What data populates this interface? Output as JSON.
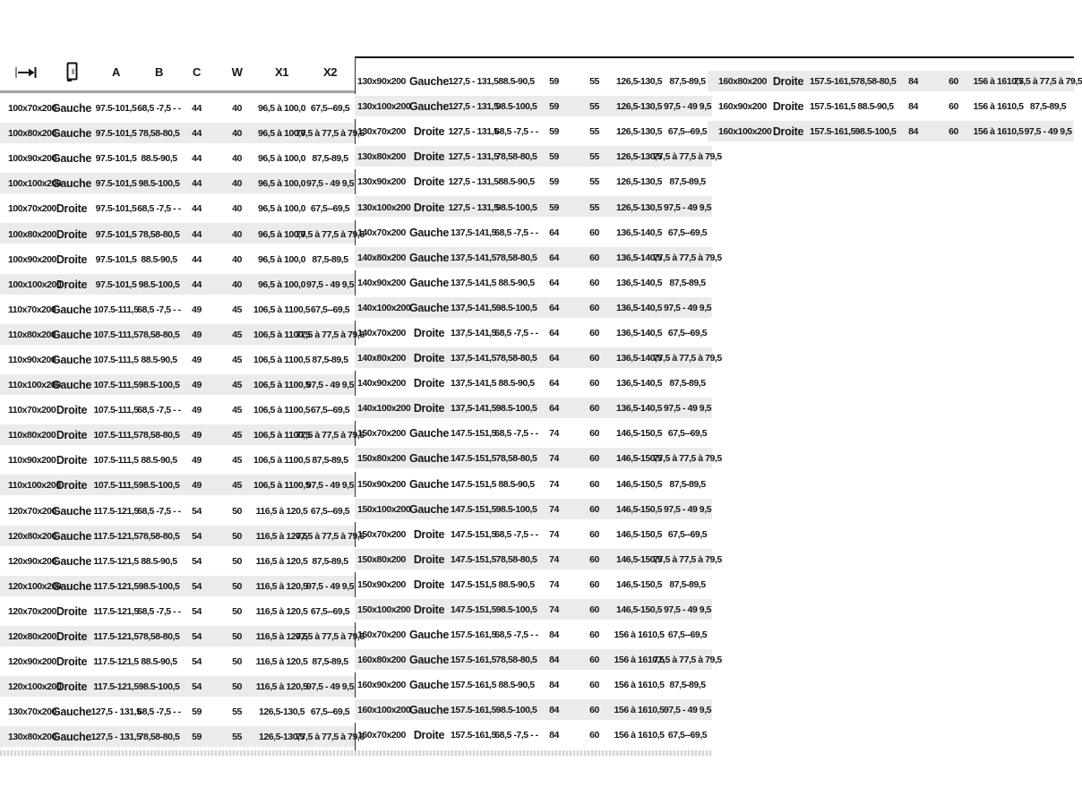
{
  "header": {
    "icons": [
      "width-dimension-icon",
      "door-icon"
    ],
    "labels": [
      "A",
      "B",
      "C",
      "W",
      "X1",
      "X2"
    ]
  },
  "columns": [
    "size",
    "side",
    "A",
    "B",
    "C",
    "W",
    "X1",
    "X2"
  ],
  "colors": {
    "row_shade": "#ebebeb",
    "header_rule": "#a3a3a3",
    "top_rule": "#101010",
    "text": "#161616"
  },
  "tables": [
    {
      "id": "left",
      "shade_parity": 1,
      "rows": [
        [
          "100x70x200",
          "Gauche",
          "97.5-101,5",
          "68,5 -7,5 - -",
          "44",
          "40",
          "96,5 à 100,0",
          "67,5--69,5"
        ],
        [
          "100x80x200",
          "Gauche",
          "97.5-101,5",
          "78,58-80,5",
          "44",
          "40",
          "96,5 à 100,0",
          "77,5 à 77,5 à 79,5"
        ],
        [
          "100x90x200",
          "Gauche",
          "97.5-101,5",
          "88.5-90,5",
          "44",
          "40",
          "96,5 à 100,0",
          "87,5-89,5"
        ],
        [
          "100x100x200",
          "Gauche",
          "97.5-101,5",
          "98.5-100,5",
          "44",
          "40",
          "96,5 à 100,0",
          "97,5 - 49 9,5"
        ],
        [
          "100x70x200",
          "Droite",
          "97.5-101,5",
          "68,5 -7,5 - -",
          "44",
          "40",
          "96,5 à 100,0",
          "67,5--69,5"
        ],
        [
          "100x80x200",
          "Droite",
          "97.5-101,5",
          "78,58-80,5",
          "44",
          "40",
          "96,5 à 100,0",
          "77,5 à 77,5 à 79,5"
        ],
        [
          "100x90x200",
          "Droite",
          "97.5-101,5",
          "88.5-90,5",
          "44",
          "40",
          "96,5 à 100,0",
          "87,5-89,5"
        ],
        [
          "100x100x200",
          "Droite",
          "97.5-101,5",
          "98.5-100,5",
          "44",
          "40",
          "96,5 à 100,0",
          "97,5 - 49 9,5"
        ],
        [
          "110x70x200",
          "Gauche",
          "107.5-111,5",
          "68,5 -7,5 - -",
          "49",
          "45",
          "106,5 à 1100,5",
          "67,5--69,5"
        ],
        [
          "110x80x200",
          "Gauche",
          "107.5-111,5",
          "78,58-80,5",
          "49",
          "45",
          "106,5 à 1100,5",
          "77,5 à 77,5 à 79,5"
        ],
        [
          "110x90x200",
          "Gauche",
          "107.5-111,5",
          "88.5-90,5",
          "49",
          "45",
          "106,5 à 1100,5",
          "87,5-89,5"
        ],
        [
          "110x100x200",
          "Gauche",
          "107.5-111,5",
          "98.5-100,5",
          "49",
          "45",
          "106,5 à 1100,5",
          "97,5 - 49 9,5"
        ],
        [
          "110x70x200",
          "Droite",
          "107.5-111,5",
          "68,5 -7,5 - -",
          "49",
          "45",
          "106,5 à 1100,5",
          "67,5--69,5"
        ],
        [
          "110x80x200",
          "Droite",
          "107.5-111,5",
          "78,58-80,5",
          "49",
          "45",
          "106,5 à 1100,5",
          "77,5 à 77,5 à 79,5"
        ],
        [
          "110x90x200",
          "Droite",
          "107.5-111,5",
          "88.5-90,5",
          "49",
          "45",
          "106,5 à 1100,5",
          "87,5-89,5"
        ],
        [
          "110x100x200",
          "Droite",
          "107.5-111,5",
          "98.5-100,5",
          "49",
          "45",
          "106,5 à 1100,5",
          "97,5 - 49 9,5"
        ],
        [
          "120x70x200",
          "Gauche",
          "117.5-121,5",
          "68,5 -7,5 - -",
          "54",
          "50",
          "116,5 à 120,5",
          "67,5--69,5"
        ],
        [
          "120x80x200",
          "Gauche",
          "117.5-121,5",
          "78,58-80,5",
          "54",
          "50",
          "116,5 à 120,5",
          "77,5 à 77,5 à 79,5"
        ],
        [
          "120x90x200",
          "Gauche",
          "117.5-121,5",
          "88.5-90,5",
          "54",
          "50",
          "116,5 à 120,5",
          "87,5-89,5"
        ],
        [
          "120x100x200",
          "Gauche",
          "117.5-121,5",
          "98.5-100,5",
          "54",
          "50",
          "116,5 à 120,5",
          "97,5 - 49 9,5"
        ],
        [
          "120x70x200",
          "Droite",
          "117.5-121,5",
          "68,5 -7,5 - -",
          "54",
          "50",
          "116,5 à 120,5",
          "67,5--69,5"
        ],
        [
          "120x80x200",
          "Droite",
          "117.5-121,5",
          "78,58-80,5",
          "54",
          "50",
          "116,5 à 120,5",
          "77,5 à 77,5 à 79,5"
        ],
        [
          "120x90x200",
          "Droite",
          "117.5-121,5",
          "88.5-90,5",
          "54",
          "50",
          "116,5 à 120,5",
          "87,5-89,5"
        ],
        [
          "120x100x200",
          "Droite",
          "117.5-121,5",
          "98.5-100,5",
          "54",
          "50",
          "116,5 à 120,5",
          "97,5 - 49 9,5"
        ],
        [
          "130x70x200",
          "Gauche",
          "127,5 - 131,5",
          "68,5 -7,5 - -",
          "59",
          "55",
          "126,5-130,5",
          "67,5--69,5"
        ],
        [
          "130x80x200",
          "Gauche",
          "127,5 - 131,5",
          "78,58-80,5",
          "59",
          "55",
          "126,5-130,5",
          "77,5 à 77,5 à 79,5"
        ]
      ]
    },
    {
      "id": "middle",
      "shade_parity": 1,
      "rows": [
        [
          "130x90x200",
          "Gauche",
          "127,5 - 131,5",
          "88.5-90,5",
          "59",
          "55",
          "126,5-130,5",
          "87,5-89,5"
        ],
        [
          "130x100x200",
          "Gauche",
          "127,5 - 131,5",
          "98.5-100,5",
          "59",
          "55",
          "126,5-130,5",
          "97,5 - 49 9,5"
        ],
        [
          "130x70x200",
          "Droite",
          "127,5 - 131,5",
          "68,5 -7,5 - -",
          "59",
          "55",
          "126,5-130,5",
          "67,5--69,5"
        ],
        [
          "130x80x200",
          "Droite",
          "127,5 - 131,5",
          "78,58-80,5",
          "59",
          "55",
          "126,5-130,5",
          "77,5 à 77,5 à 79,5"
        ],
        [
          "130x90x200",
          "Droite",
          "127,5 - 131,5",
          "88.5-90,5",
          "59",
          "55",
          "126,5-130,5",
          "87,5-89,5"
        ],
        [
          "130x100x200",
          "Droite",
          "127,5 - 131,5",
          "98.5-100,5",
          "59",
          "55",
          "126,5-130,5",
          "97,5 - 49 9,5"
        ],
        [
          "140x70x200",
          "Gauche",
          "137,5-141,5",
          "68,5 -7,5 - -",
          "64",
          "60",
          "136,5-140,5",
          "67,5--69,5"
        ],
        [
          "140x80x200",
          "Gauche",
          "137,5-141,5",
          "78,58-80,5",
          "64",
          "60",
          "136,5-140,5",
          "77,5 à 77,5 à 79,5"
        ],
        [
          "140x90x200",
          "Gauche",
          "137,5-141,5",
          "88.5-90,5",
          "64",
          "60",
          "136,5-140,5",
          "87,5-89,5"
        ],
        [
          "140x100x200",
          "Gauche",
          "137,5-141,5",
          "98.5-100,5",
          "64",
          "60",
          "136,5-140,5",
          "97,5 - 49 9,5"
        ],
        [
          "140x70x200",
          "Droite",
          "137,5-141,5",
          "68,5 -7,5 - -",
          "64",
          "60",
          "136,5-140,5",
          "67,5--69,5"
        ],
        [
          "140x80x200",
          "Droite",
          "137,5-141,5",
          "78,58-80,5",
          "64",
          "60",
          "136,5-140,5",
          "77,5 à 77,5 à 79,5"
        ],
        [
          "140x90x200",
          "Droite",
          "137,5-141,5",
          "88.5-90,5",
          "64",
          "60",
          "136,5-140,5",
          "87,5-89,5"
        ],
        [
          "140x100x200",
          "Droite",
          "137,5-141,5",
          "98.5-100,5",
          "64",
          "60",
          "136,5-140,5",
          "97,5 - 49 9,5"
        ],
        [
          "150x70x200",
          "Gauche",
          "147.5-151,5",
          "68,5 -7,5 - -",
          "74",
          "60",
          "146,5-150,5",
          "67,5--69,5"
        ],
        [
          "150x80x200",
          "Gauche",
          "147.5-151,5",
          "78,58-80,5",
          "74",
          "60",
          "146,5-150,5",
          "77,5 à 77,5 à 79,5"
        ],
        [
          "150x90x200",
          "Gauche",
          "147.5-151,5",
          "88.5-90,5",
          "74",
          "60",
          "146,5-150,5",
          "87,5-89,5"
        ],
        [
          "150x100x200",
          "Gauche",
          "147.5-151,5",
          "98.5-100,5",
          "74",
          "60",
          "146,5-150,5",
          "97,5 - 49 9,5"
        ],
        [
          "150x70x200",
          "Droite",
          "147.5-151,5",
          "68,5 -7,5 - -",
          "74",
          "60",
          "146,5-150,5",
          "67,5--69,5"
        ],
        [
          "150x80x200",
          "Droite",
          "147.5-151,5",
          "78,58-80,5",
          "74",
          "60",
          "146,5-150,5",
          "77,5 à 77,5 à 79,5"
        ],
        [
          "150x90x200",
          "Droite",
          "147.5-151,5",
          "88.5-90,5",
          "74",
          "60",
          "146,5-150,5",
          "87,5-89,5"
        ],
        [
          "150x100x200",
          "Droite",
          "147.5-151,5",
          "98.5-100,5",
          "74",
          "60",
          "146,5-150,5",
          "97,5 - 49 9,5"
        ],
        [
          "160x70x200",
          "Gauche",
          "157.5-161,5",
          "68,5 -7,5 - -",
          "84",
          "60",
          "156 à 1610,5",
          "67,5--69,5"
        ],
        [
          "160x80x200",
          "Gauche",
          "157.5-161,5",
          "78,58-80,5",
          "84",
          "60",
          "156 à 1610,5",
          "77,5 à 77,5 à 79,5"
        ],
        [
          "160x90x200",
          "Gauche",
          "157.5-161,5",
          "88.5-90,5",
          "84",
          "60",
          "156 à 1610,5",
          "87,5-89,5"
        ],
        [
          "160x100x200",
          "Gauche",
          "157.5-161,5",
          "98.5-100,5",
          "84",
          "60",
          "156 à 1610,5",
          "97,5 - 49 9,5"
        ],
        [
          "160x70x200",
          "Droite",
          "157.5-161,5",
          "68,5 -7,5 - -",
          "84",
          "60",
          "156 à 1610,5",
          "67,5--69,5"
        ]
      ]
    },
    {
      "id": "right",
      "shade_parity": 0,
      "rows": [
        [
          "160x80x200",
          "Droite",
          "157.5-161,5",
          "78,58-80,5",
          "84",
          "60",
          "156 à 1610,5",
          "77,5 à 77,5 à 79,5"
        ],
        [
          "160x90x200",
          "Droite",
          "157.5-161,5",
          "88.5-90,5",
          "84",
          "60",
          "156 à 1610,5",
          "87,5-89,5"
        ],
        [
          "160x100x200",
          "Droite",
          "157.5-161,5",
          "98.5-100,5",
          "84",
          "60",
          "156 à 1610,5",
          "97,5 - 49 9,5"
        ]
      ]
    }
  ]
}
